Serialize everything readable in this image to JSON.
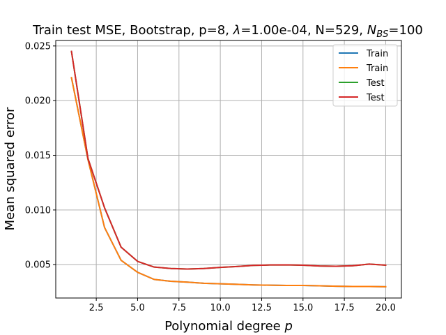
{
  "chart_data": {
    "type": "line",
    "title": "Train test MSE, Bootstrap, p=8, λ=1.00e-04, N=529, N_BS=100",
    "title_parts": {
      "prefix": "Train test MSE, Bootstrap, p=8, ",
      "lambda_symbol": "λ",
      "lambda_value": "=1.00e-04, N=529, ",
      "nbs_symbol": "N",
      "nbs_subscript": "BS",
      "nbs_value": "=100"
    },
    "xlabel": "Polynomial degree",
    "xlabel_var": "p",
    "ylabel": "Mean squared error",
    "xlim": [
      0.05,
      20.95
    ],
    "ylim": [
      0.00195,
      0.0255
    ],
    "xticks": [
      2.5,
      5.0,
      7.5,
      10.0,
      12.5,
      15.0,
      17.5,
      20.0
    ],
    "xtick_labels": [
      "2.5",
      "5.0",
      "7.5",
      "10.0",
      "12.5",
      "15.0",
      "17.5",
      "20.0"
    ],
    "yticks": [
      0.005,
      0.01,
      0.015,
      0.02,
      0.025
    ],
    "ytick_labels": [
      "0.005",
      "0.010",
      "0.015",
      "0.020",
      "0.025"
    ],
    "grid": true,
    "legend_position": "upper-right",
    "x": [
      1,
      2,
      3,
      4,
      5,
      6,
      7,
      8,
      9,
      10,
      11,
      12,
      13,
      14,
      15,
      16,
      17,
      18,
      19,
      20
    ],
    "series": [
      {
        "name": "Train",
        "color": "#1f77b4",
        "values": [
          0.0221,
          0.0146,
          0.0084,
          0.0054,
          0.0043,
          0.00365,
          0.00348,
          0.0034,
          0.0033,
          0.00325,
          0.0032,
          0.00315,
          0.00312,
          0.0031,
          0.0031,
          0.00307,
          0.00303,
          0.003,
          0.003,
          0.00298
        ]
      },
      {
        "name": "Train",
        "color": "#ff7f0e",
        "values": [
          0.0221,
          0.0146,
          0.0084,
          0.0054,
          0.0043,
          0.00365,
          0.00348,
          0.0034,
          0.0033,
          0.00325,
          0.0032,
          0.00315,
          0.00312,
          0.0031,
          0.0031,
          0.00307,
          0.00303,
          0.003,
          0.003,
          0.00298
        ]
      },
      {
        "name": "Test",
        "color": "#2ca02c",
        "values": [
          0.0245,
          0.0147,
          0.0102,
          0.0066,
          0.0053,
          0.00478,
          0.00465,
          0.0046,
          0.00465,
          0.00475,
          0.00483,
          0.00493,
          0.00497,
          0.00498,
          0.00495,
          0.00488,
          0.00485,
          0.0049,
          0.00505,
          0.00495
        ]
      },
      {
        "name": "Test",
        "color": "#d62728",
        "values": [
          0.0245,
          0.0147,
          0.0102,
          0.0066,
          0.0053,
          0.00478,
          0.00465,
          0.0046,
          0.00465,
          0.00475,
          0.00483,
          0.00493,
          0.00497,
          0.00498,
          0.00495,
          0.00488,
          0.00485,
          0.0049,
          0.00505,
          0.00495
        ]
      }
    ]
  }
}
